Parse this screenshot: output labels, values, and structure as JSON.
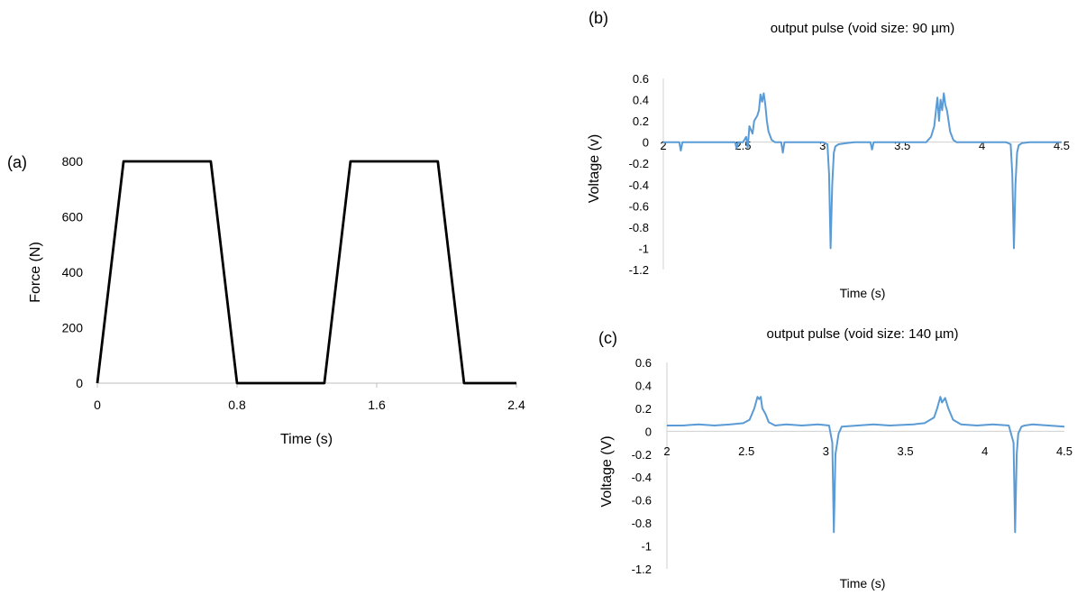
{
  "chart_data": [
    {
      "id": "a",
      "type": "line",
      "panel_label": "(a)",
      "title": "",
      "xlabel": "Time (s)",
      "ylabel": "Force (N)",
      "xlim": [
        0,
        2.4
      ],
      "ylim": [
        0,
        800
      ],
      "xticks": [
        0,
        0.8,
        1.6,
        2.4
      ],
      "xtick_labels": [
        "0",
        "0.8",
        "1.6",
        "2.4"
      ],
      "yticks": [
        0,
        200,
        400,
        600,
        800
      ],
      "ytick_labels": [
        "0",
        "200",
        "400",
        "600",
        "800"
      ],
      "grid": false,
      "color": "#000000",
      "x": [
        0,
        0.15,
        0.65,
        0.8,
        1.3,
        1.45,
        1.95,
        2.1,
        2.4
      ],
      "y": [
        0,
        800,
        800,
        0,
        0,
        800,
        800,
        0,
        0
      ]
    },
    {
      "id": "b",
      "type": "line",
      "panel_label": "(b)",
      "title": "output pulse (void size: 90 µm)",
      "xlabel": "Time (s)",
      "ylabel": "Voltage (v)",
      "xlim": [
        2,
        4.5
      ],
      "ylim": [
        -1.2,
        0.6
      ],
      "xticks": [
        2,
        2.5,
        3,
        3.5,
        4,
        4.5
      ],
      "xtick_labels": [
        "2",
        "2.5",
        "3",
        "3.5",
        "4",
        "4.5"
      ],
      "yticks": [
        0.6,
        0.4,
        0.2,
        0,
        -0.2,
        -0.4,
        -0.6,
        -0.8,
        -1,
        -1.2
      ],
      "ytick_labels": [
        "0.6",
        "0.4",
        "0.2",
        "0",
        "-0.2",
        "-0.4",
        "-0.6",
        "-0.8",
        "-1",
        "-1.2"
      ],
      "grid": false,
      "color": "#5B9BD5",
      "x": [
        2.0,
        2.1,
        2.11,
        2.12,
        2.3,
        2.45,
        2.46,
        2.47,
        2.5,
        2.52,
        2.53,
        2.54,
        2.56,
        2.57,
        2.59,
        2.6,
        2.61,
        2.62,
        2.63,
        2.64,
        2.65,
        2.66,
        2.68,
        2.7,
        2.74,
        2.75,
        2.76,
        2.9,
        3.0,
        3.03,
        3.04,
        3.05,
        3.06,
        3.07,
        3.08,
        3.1,
        3.15,
        3.2,
        3.3,
        3.31,
        3.32,
        3.5,
        3.65,
        3.68,
        3.69,
        3.7,
        3.72,
        3.73,
        3.74,
        3.75,
        3.76,
        3.77,
        3.78,
        3.79,
        3.8,
        3.82,
        3.84,
        3.9,
        4.0,
        4.15,
        4.18,
        4.19,
        4.2,
        4.21,
        4.22,
        4.23,
        4.25,
        4.3,
        4.35,
        4.4,
        4.5
      ],
      "y": [
        0.0,
        0.0,
        -0.08,
        0.0,
        0.0,
        0.0,
        -0.06,
        0.0,
        0.0,
        0.05,
        -0.05,
        0.15,
        0.08,
        0.2,
        0.25,
        0.3,
        0.45,
        0.38,
        0.46,
        0.35,
        0.2,
        0.1,
        0.02,
        0.0,
        0.0,
        -0.1,
        0.0,
        0.0,
        0.0,
        -0.02,
        -0.3,
        -1.0,
        -0.4,
        -0.1,
        -0.04,
        -0.02,
        -0.01,
        0.0,
        0.0,
        -0.07,
        0.0,
        0.0,
        0.0,
        0.05,
        0.1,
        0.15,
        0.42,
        0.2,
        0.4,
        0.3,
        0.46,
        0.35,
        0.3,
        0.2,
        0.1,
        0.02,
        0.0,
        0.0,
        0.0,
        0.0,
        -0.02,
        -0.3,
        -1.0,
        -0.4,
        -0.1,
        -0.03,
        -0.01,
        0.0,
        0.0,
        0.0,
        0.0
      ]
    },
    {
      "id": "c",
      "type": "line",
      "panel_label": "(c)",
      "title": "output pulse (void size: 140 µm)",
      "xlabel": "Time (s)",
      "ylabel": "Voltage (V)",
      "xlim": [
        2,
        4.5
      ],
      "ylim": [
        -1.2,
        0.6
      ],
      "xticks": [
        2,
        2.5,
        3,
        3.5,
        4,
        4.5
      ],
      "xtick_labels": [
        "2",
        "2.5",
        "3",
        "3.5",
        "4",
        "4.5"
      ],
      "yticks": [
        0.6,
        0.4,
        0.2,
        0,
        -0.2,
        -0.4,
        -0.6,
        -0.8,
        -1,
        -1.2
      ],
      "ytick_labels": [
        "0.6",
        "0.4",
        "0.2",
        "0",
        "-0.2",
        "-0.4",
        "-0.6",
        "-0.8",
        "-1",
        "-1.2"
      ],
      "grid": false,
      "color": "#5B9BD5",
      "x": [
        2.0,
        2.1,
        2.2,
        2.3,
        2.4,
        2.48,
        2.52,
        2.55,
        2.57,
        2.58,
        2.59,
        2.6,
        2.62,
        2.64,
        2.68,
        2.75,
        2.85,
        2.95,
        3.02,
        3.04,
        3.05,
        3.06,
        3.08,
        3.1,
        3.2,
        3.3,
        3.4,
        3.55,
        3.62,
        3.68,
        3.7,
        3.72,
        3.73,
        3.75,
        3.77,
        3.8,
        3.85,
        3.95,
        4.05,
        4.15,
        4.18,
        4.19,
        4.2,
        4.21,
        4.23,
        4.25,
        4.3,
        4.4,
        4.5
      ],
      "y": [
        0.05,
        0.05,
        0.06,
        0.05,
        0.06,
        0.07,
        0.1,
        0.2,
        0.3,
        0.28,
        0.3,
        0.2,
        0.15,
        0.08,
        0.05,
        0.06,
        0.05,
        0.06,
        0.05,
        -0.1,
        -0.88,
        -0.2,
        -0.02,
        0.04,
        0.05,
        0.06,
        0.05,
        0.06,
        0.07,
        0.12,
        0.2,
        0.3,
        0.25,
        0.29,
        0.2,
        0.1,
        0.06,
        0.05,
        0.06,
        0.05,
        -0.1,
        -0.88,
        -0.2,
        -0.02,
        0.04,
        0.05,
        0.06,
        0.05,
        0.04
      ]
    }
  ]
}
